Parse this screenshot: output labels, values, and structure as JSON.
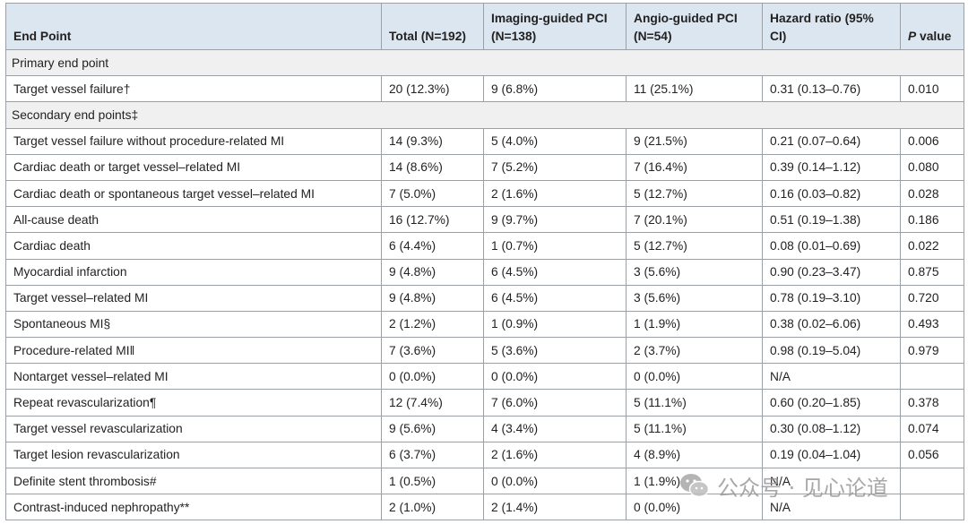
{
  "table": {
    "headers": {
      "end_point": "End Point",
      "total": "Total (N=192)",
      "imaging": "Imaging-guided PCI (N=138)",
      "angio": "Angio-guided PCI (N=54)",
      "hazard": "Hazard ratio (95% CI)",
      "p_italic": "P",
      "p_rest": " value"
    },
    "sections": {
      "primary": "Primary end point",
      "secondary": "Secondary end points‡"
    },
    "rows": [
      {
        "label": "Target vessel failure†",
        "total": "20 (12.3%)",
        "imaging": "9 (6.8%)",
        "angio": "11 (25.1%)",
        "hr": "0.31 (0.13–0.76)",
        "p": "0.010"
      },
      {
        "label": "Target vessel failure without procedure-related MI",
        "total": "14 (9.3%)",
        "imaging": "5 (4.0%)",
        "angio": "9 (21.5%)",
        "hr": "0.21 (0.07–0.64)",
        "p": "0.006"
      },
      {
        "label": "Cardiac death or target vessel–related MI",
        "total": "14 (8.6%)",
        "imaging": "7 (5.2%)",
        "angio": "7 (16.4%)",
        "hr": "0.39 (0.14–1.12)",
        "p": "0.080"
      },
      {
        "label": "Cardiac death or spontaneous target vessel–related MI",
        "total": "7 (5.0%)",
        "imaging": "2 (1.6%)",
        "angio": "5 (12.7%)",
        "hr": "0.16 (0.03–0.82)",
        "p": "0.028"
      },
      {
        "label": "All-cause death",
        "total": "16 (12.7%)",
        "imaging": "9 (9.7%)",
        "angio": "7 (20.1%)",
        "hr": "0.51 (0.19–1.38)",
        "p": "0.186"
      },
      {
        "label": "Cardiac death",
        "total": "6 (4.4%)",
        "imaging": "1 (0.7%)",
        "angio": "5 (12.7%)",
        "hr": "0.08 (0.01–0.69)",
        "p": "0.022"
      },
      {
        "label": "Myocardial infarction",
        "total": "9 (4.8%)",
        "imaging": "6 (4.5%)",
        "angio": "3 (5.6%)",
        "hr": "0.90 (0.23–3.47)",
        "p": "0.875"
      },
      {
        "label": "Target vessel–related MI",
        "total": "9 (4.8%)",
        "imaging": "6 (4.5%)",
        "angio": "3 (5.6%)",
        "hr": "0.78 (0.19–3.10)",
        "p": "0.720"
      },
      {
        "label": "Spontaneous MI§",
        "total": "2 (1.2%)",
        "imaging": "1 (0.9%)",
        "angio": "1 (1.9%)",
        "hr": "0.38 (0.02–6.06)",
        "p": "0.493"
      },
      {
        "label": "Procedure-related MI‖",
        "total": "7 (3.6%)",
        "imaging": "5 (3.6%)",
        "angio": "2 (3.7%)",
        "hr": "0.98 (0.19–5.04)",
        "p": "0.979"
      },
      {
        "label": "Nontarget vessel–related MI",
        "total": "0 (0.0%)",
        "imaging": "0 (0.0%)",
        "angio": "0 (0.0%)",
        "hr": "N/A",
        "p": ""
      },
      {
        "label": "Repeat revascularization¶",
        "total": "12 (7.4%)",
        "imaging": "7 (6.0%)",
        "angio": "5 (11.1%)",
        "hr": "0.60 (0.20–1.85)",
        "p": "0.378"
      },
      {
        "label": "Target vessel revascularization",
        "total": "9 (5.6%)",
        "imaging": "4 (3.4%)",
        "angio": "5 (11.1%)",
        "hr": "0.30 (0.08–1.12)",
        "p": "0.074"
      },
      {
        "label": "Target lesion revascularization",
        "total": "6 (3.7%)",
        "imaging": "2 (1.6%)",
        "angio": "4 (8.9%)",
        "hr": "0.19 (0.04–1.04)",
        "p": "0.056"
      },
      {
        "label": "Definite stent thrombosis#",
        "total": "1 (0.5%)",
        "imaging": "0 (0.0%)",
        "angio": "1 (1.9%)",
        "hr": "N/A",
        "p": ""
      },
      {
        "label": "Contrast-induced nephropathy**",
        "total": "2 (1.0%)",
        "imaging": "2 (1.4%)",
        "angio": "0 (0.0%)",
        "hr": "N/A",
        "p": ""
      }
    ]
  },
  "watermark": {
    "icon": "wechat-icon",
    "text": "公众号 · 见心论道"
  }
}
